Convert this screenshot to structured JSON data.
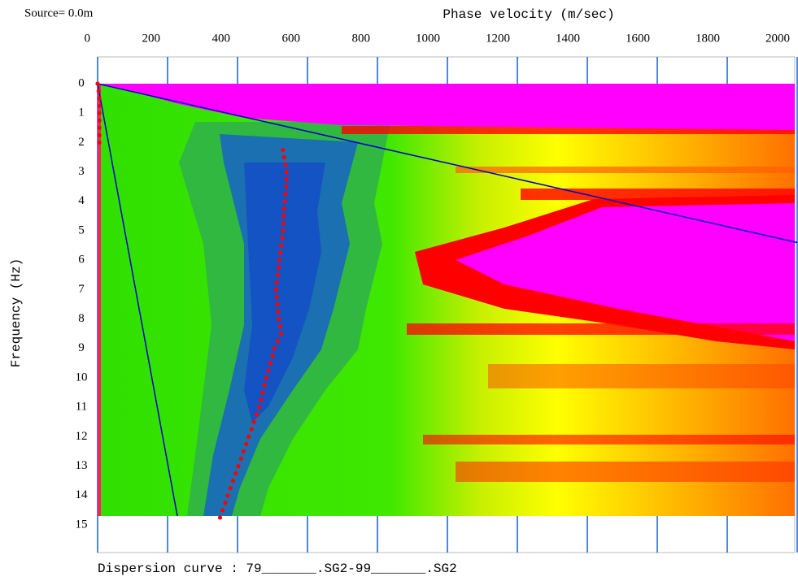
{
  "chart_data": {
    "type": "scatter",
    "annotation": "Source= 0.0m",
    "xlabel": "Phase velocity (m/sec)",
    "ylabel": "Frequency (Hz)",
    "footer": "Dispersion curve : 79_______.SG2-99_______.SG2",
    "xlim": [
      0,
      2000
    ],
    "xticks": [
      0,
      200,
      400,
      600,
      800,
      1000,
      1200,
      1400,
      1600,
      1800,
      2000
    ],
    "ylim": [
      0,
      15
    ],
    "yticks": [
      0,
      1,
      2,
      3,
      4,
      5,
      6,
      7,
      8,
      9,
      10,
      11,
      12,
      13,
      14,
      15
    ],
    "y_inverted": true,
    "grid_color": "#1060d0",
    "series": [
      {
        "color": "#ff0000",
        "x": [
          0,
          3,
          5,
          5,
          5,
          5,
          5,
          5,
          5,
          530,
          533,
          537,
          540,
          540,
          539,
          537,
          535,
          533,
          532,
          531,
          530,
          528,
          525,
          522,
          520,
          518,
          515,
          512,
          510,
          512,
          514,
          516,
          518,
          522,
          525,
          515,
          505,
          500,
          494,
          488,
          482,
          477,
          472,
          467,
          462,
          455,
          447,
          440,
          432,
          425,
          417,
          410,
          402,
          395,
          387,
          380,
          372,
          365,
          357,
          350
        ],
        "y": [
          0,
          0.25,
          0.5,
          0.75,
          1,
          1.25,
          1.5,
          1.75,
          2,
          2.25,
          2.5,
          2.75,
          3,
          3.25,
          3.5,
          3.75,
          4,
          4.25,
          4.5,
          4.75,
          5,
          5.25,
          5.5,
          5.75,
          6,
          6.25,
          6.5,
          6.75,
          7,
          7.25,
          7.5,
          7.75,
          8,
          8.25,
          8.5,
          8.75,
          9,
          9.25,
          9.5,
          9.75,
          10,
          10.25,
          10.5,
          10.75,
          11,
          11.25,
          11.5,
          11.75,
          12,
          12.25,
          12.5,
          12.75,
          13,
          13.25,
          13.5,
          13.75,
          14,
          14.25,
          14.5,
          14.75
        ]
      }
    ],
    "lines": [
      {
        "color": "#0000cc",
        "x": [
          0,
          2000
        ],
        "y": [
          0,
          5.4
        ]
      },
      {
        "color": "#0000cc",
        "x": [
          0,
          228
        ],
        "y": [
          0,
          14.7
        ]
      }
    ]
  }
}
